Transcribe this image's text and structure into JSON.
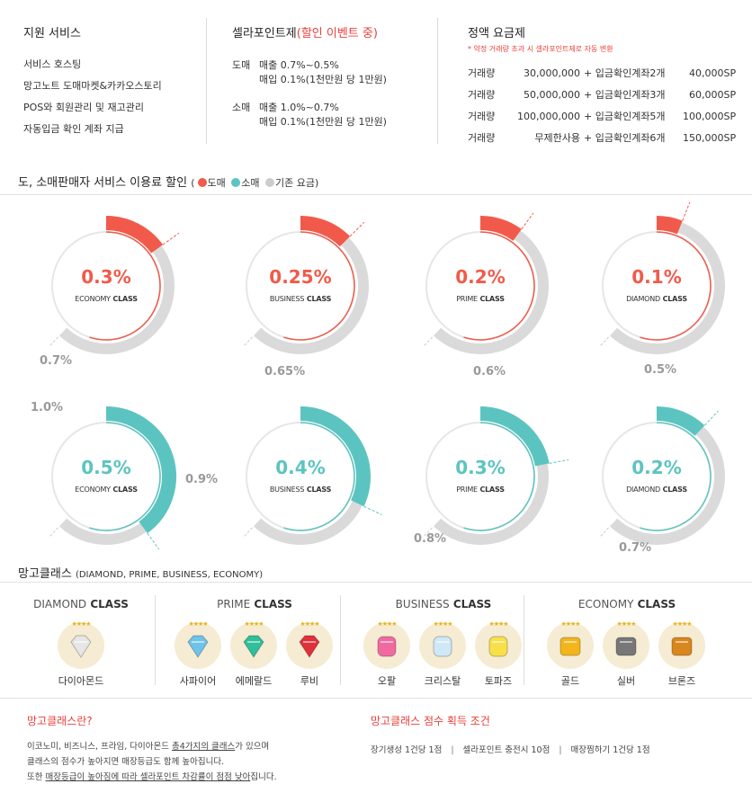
{
  "services": {
    "title": "지원 서비스",
    "items": [
      "서비스 호스팅",
      "망고노트 도매마켓&카카오스토리",
      "POS와 회원관리 및 재고관리",
      "자동입금 확인 계좌 지급"
    ]
  },
  "points": {
    "title": "셀라포인트제",
    "event": "(할인 이벤트 중)",
    "wholesale_label": "도매",
    "wholesale_line1": "매출 0.7%~0.5%",
    "wholesale_line2": "매입 0.1%(1천만원 당 1만원)",
    "retail_label": "소매",
    "retail_line1": "매출 1.0%~0.7%",
    "retail_line2": "매입 0.1%(1천만원 당 1만원)"
  },
  "plans": {
    "title": "정액 요금제",
    "note": "* 약정 거래량 초과 시 셀라포인트제로 자동 변환",
    "rows": [
      {
        "label": "거래량",
        "amount": "30,000,000",
        "plus": "+ 입금확인계좌2개",
        "price": "40,000SP"
      },
      {
        "label": "거래량",
        "amount": "50,000,000",
        "plus": "+ 입금확인계좌3개",
        "price": "60,000SP"
      },
      {
        "label": "거래량",
        "amount": "100,000,000",
        "plus": "+ 입금확인계좌5개",
        "price": "100,000SP"
      },
      {
        "label": "거래량",
        "amount": "무제한사용",
        "plus": "+ 입금확인계좌6개",
        "price": "150,000SP"
      }
    ]
  },
  "discount": {
    "title": "도, 소매판매자 서비스 이용료 할인",
    "legend_open": "(",
    "legend_close": ")",
    "legend": [
      {
        "label": "도매",
        "color": "#f15a4a"
      },
      {
        "label": "소매",
        "color": "#5cc4c0"
      },
      {
        "label": "기존 요금",
        "color": "#cccccc"
      }
    ]
  },
  "chart_data": [
    {
      "type": "donut",
      "series": "도매",
      "color": "#f15a4a",
      "items": [
        {
          "value": "0.3%",
          "class_main": "ECONOMY",
          "class_suffix": " CLASS",
          "old_value": "0.7%",
          "frac": 0.15
        },
        {
          "value": "0.25%",
          "class_main": "BUSINESS",
          "class_suffix": " CLASS",
          "old_value": "0.65%",
          "frac": 0.125
        },
        {
          "value": "0.2%",
          "class_main": "PRIME",
          "class_suffix": " CLASS",
          "old_value": "0.6%",
          "frac": 0.1
        },
        {
          "value": "0.1%",
          "class_main": "DIAMOND",
          "class_suffix": " CLASS",
          "old_value": "0.5%",
          "frac": 0.06
        }
      ]
    },
    {
      "type": "donut",
      "series": "소매",
      "color": "#5cc4c0",
      "items": [
        {
          "value": "0.5%",
          "class_main": "ECONOMY",
          "class_suffix": " CLASS",
          "old_value": "1.0%",
          "frac": 0.4
        },
        {
          "value": "0.4%",
          "class_main": "BUSINESS",
          "class_suffix": " CLASS",
          "old_value": "0.9%",
          "frac": 0.32
        },
        {
          "value": "0.3%",
          "class_main": "PRIME",
          "class_suffix": " CLASS",
          "old_value": "0.8%",
          "frac": 0.22
        },
        {
          "value": "0.2%",
          "class_main": "DIAMOND",
          "class_suffix": " CLASS",
          "old_value": "0.7%",
          "frac": 0.12
        }
      ]
    }
  ],
  "mango_class": {
    "title": "망고클래스",
    "subtitle": "(DIAMOND, PRIME, BUSINESS, ECONOMY)",
    "groups": [
      {
        "main": "DIAMOND",
        "suffix": " CLASS",
        "gems": [
          {
            "name": "다이아몬드",
            "color": "#e6e6e6",
            "icon": "diamond-icon"
          }
        ]
      },
      {
        "main": "PRIME",
        "suffix": " CLASS",
        "gems": [
          {
            "name": "사파이어",
            "color": "#6ec3ea",
            "icon": "sapphire-icon"
          },
          {
            "name": "에메랄드",
            "color": "#2fbf9a",
            "icon": "emerald-icon"
          },
          {
            "name": "루비",
            "color": "#e0303a",
            "icon": "ruby-icon"
          }
        ]
      },
      {
        "main": "BUSINESS",
        "suffix": " CLASS",
        "gems": [
          {
            "name": "오팔",
            "color": "#f06aa0",
            "icon": "opal-icon"
          },
          {
            "name": "크리스탈",
            "color": "#cfe8f8",
            "icon": "crystal-icon"
          },
          {
            "name": "토파즈",
            "color": "#f7e04a",
            "icon": "topaz-icon"
          }
        ]
      },
      {
        "main": "ECONOMY",
        "suffix": " CLASS",
        "gems": [
          {
            "name": "골드",
            "color": "#f3b51c",
            "icon": "gold-icon"
          },
          {
            "name": "실버",
            "color": "#777777",
            "icon": "silver-icon"
          },
          {
            "name": "브론즈",
            "color": "#d9861e",
            "icon": "bronze-icon"
          }
        ]
      }
    ],
    "stars": "★★★★"
  },
  "about": {
    "title": "망고클래스란?",
    "line1_a": "이코노미, 비즈니스, 프라임, 다이아몬드 ",
    "line1_b": "총4가지의 클래스",
    "line1_c": "가 있으며",
    "line2": "클래스의 점수가 높아지면 매장등급도 함께 높아집니다.",
    "line3_a": "또한 ",
    "line3_b": "매장등급이 높아짐에 따라 셀라포인트 차감률이 점점 낮아",
    "line3_c": "집니다."
  },
  "score": {
    "title": "망고클래스 점수 획득 조건",
    "items": [
      "장기생성 1건당 1점",
      "셀라포인트 충전시 10점",
      "매장찜하기 1건당 1점"
    ],
    "separator": "|"
  }
}
